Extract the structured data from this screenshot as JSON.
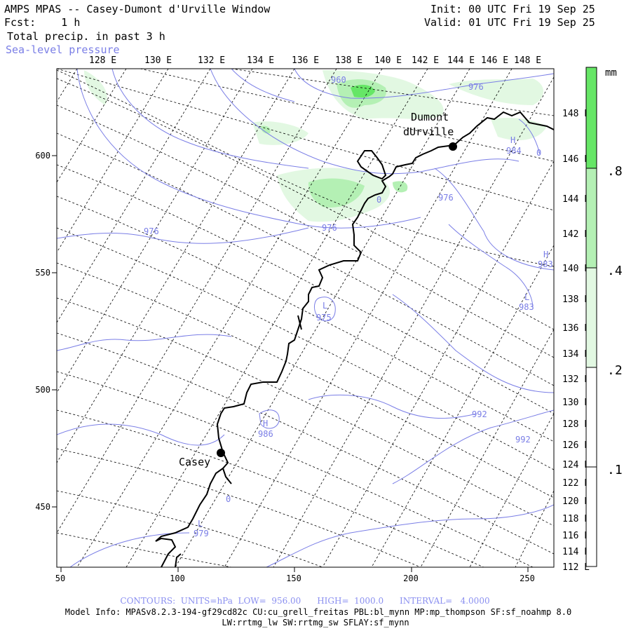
{
  "header": {
    "title": "AMPS MPAS -- Casey-Dumont d'Urville Window",
    "fcst_label": "Fcst:",
    "fcst_value": "1 h",
    "field_name": "Total precip. in past 3 h",
    "overlay_name": "Sea-level pressure",
    "init": "Init: 00 UTC Fri 19 Sep 25",
    "valid": "Valid: 01 UTC Fri 19 Sep 25"
  },
  "top_lon_labels": [
    "128 E",
    "130 E",
    "132 E",
    "134 E",
    "136 E",
    "138 E",
    "140 E",
    "142 E",
    "144 E",
    "146 E",
    "148 E"
  ],
  "right_lon_labels": [
    "148 E",
    "146 E",
    "144 E",
    "142 E",
    "140 E",
    "138 E",
    "136 E",
    "134 E",
    "132 E",
    "130 E",
    "128 E",
    "126 E",
    "124 E",
    "122 E",
    "120 E",
    "118 E",
    "116 E",
    "114 E",
    "112 E"
  ],
  "x_ticks": [
    "50",
    "100",
    "150",
    "200",
    "250"
  ],
  "y_ticks": [
    "600",
    "550",
    "500",
    "450"
  ],
  "colorbar": {
    "unit": "mm",
    "labels": [
      ".8",
      ".4",
      ".2",
      ".1"
    ],
    "colors": [
      "#66e666",
      "#b4f0b4",
      "#e2f8e2",
      "#ffffff"
    ]
  },
  "stations": [
    {
      "name_line1": "Dumont",
      "name_line2": "dUrville"
    },
    {
      "name_line1": "Casey",
      "name_line2": ""
    }
  ],
  "contour_labels": [
    "960",
    "976",
    "976",
    "976",
    "976",
    "975",
    "986",
    "992",
    "992",
    "979",
    "984",
    "983",
    "983",
    "0",
    "0",
    "0"
  ],
  "pressure_markers": [
    "H",
    "H",
    "H",
    "L",
    "L",
    "L"
  ],
  "footer": {
    "contours_line": "CONTOURS:  UNITS=hPa  LOW=  956.00      HIGH=  1000.0      INTERVAL=   4.0000",
    "model_line": "Model Info: MPASv8.2.3-194-gf29cd82c CU:cu_grell_freitas PBL:bl_mynn MP:mp_thompson SF:sf_noahmp 8.0",
    "physics_line": "LW:rrtmg_lw SW:rrtmg_sw SFLAY:sf_mynn"
  },
  "colors": {
    "contour": "#7a7ee6",
    "coast": "#000000",
    "grid": "#000000",
    "precip_light": "#c9f2c9",
    "precip_mid": "#8fe08f"
  }
}
